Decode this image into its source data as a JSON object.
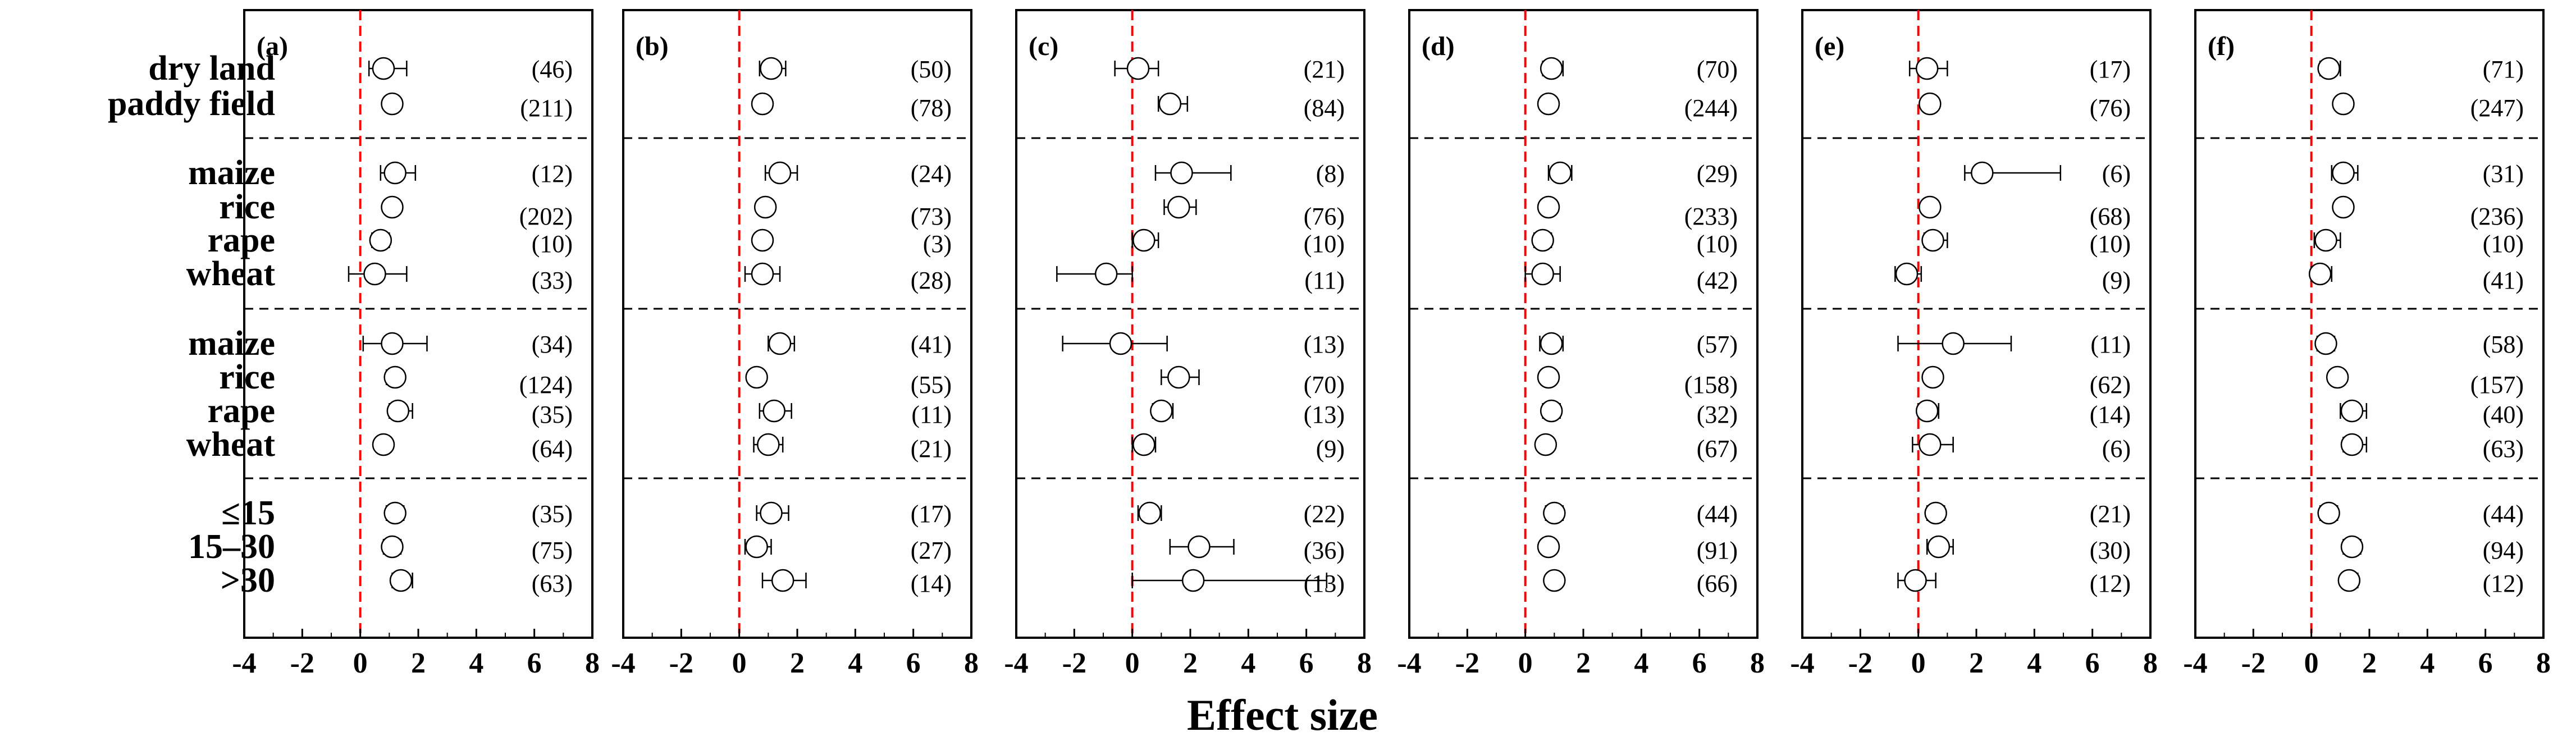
{
  "chart_data": {
    "type": "forest",
    "xlabel": "Effect size",
    "xlim": [
      -4,
      8
    ],
    "xticks": [
      -4,
      -2,
      0,
      2,
      4,
      6,
      8
    ],
    "reference_line": 0,
    "rows": [
      "dry land",
      "paddy field",
      "maize",
      "rice",
      "rape",
      "wheat",
      "maize",
      "rice",
      "rape",
      "wheat",
      "≤15",
      "15–30",
      ">30"
    ],
    "groups": [
      {
        "rows": [
          0,
          1
        ]
      },
      {
        "rows": [
          2,
          3,
          4,
          5
        ]
      },
      {
        "rows": [
          6,
          7,
          8,
          9
        ]
      },
      {
        "rows": [
          10,
          11,
          12
        ]
      }
    ],
    "panels": [
      {
        "label": "(a)",
        "points": [
          {
            "mean": 0.8,
            "lo": 0.3,
            "hi": 1.6,
            "n": "(46)"
          },
          {
            "mean": 1.1,
            "lo": 0.9,
            "hi": 1.3,
            "n": "(211)"
          },
          {
            "mean": 1.2,
            "lo": 0.7,
            "hi": 1.9,
            "n": "(12)"
          },
          {
            "mean": 1.1,
            "lo": 0.9,
            "hi": 1.3,
            "n": "(202)"
          },
          {
            "mean": 0.7,
            "lo": 0.4,
            "hi": 1.0,
            "n": "(10)"
          },
          {
            "mean": 0.5,
            "lo": -0.4,
            "hi": 1.6,
            "n": "(33)"
          },
          {
            "mean": 1.1,
            "lo": 0.1,
            "hi": 2.3,
            "n": "(34)"
          },
          {
            "mean": 1.2,
            "lo": 0.9,
            "hi": 1.4,
            "n": "(124)"
          },
          {
            "mean": 1.3,
            "lo": 1.0,
            "hi": 1.8,
            "n": "(35)"
          },
          {
            "mean": 0.8,
            "lo": 0.6,
            "hi": 1.0,
            "n": "(64)"
          },
          {
            "mean": 1.2,
            "lo": 0.9,
            "hi": 1.5,
            "n": "(35)"
          },
          {
            "mean": 1.1,
            "lo": 0.8,
            "hi": 1.4,
            "n": "(75)"
          },
          {
            "mean": 1.4,
            "lo": 1.1,
            "hi": 1.8,
            "n": "(63)"
          }
        ]
      },
      {
        "label": "(b)",
        "points": [
          {
            "mean": 1.1,
            "lo": 0.7,
            "hi": 1.6,
            "n": "(50)"
          },
          {
            "mean": 0.8,
            "lo": 0.6,
            "hi": 1.0,
            "n": "(78)"
          },
          {
            "mean": 1.4,
            "lo": 0.9,
            "hi": 2.0,
            "n": "(24)"
          },
          {
            "mean": 0.9,
            "lo": 0.7,
            "hi": 1.1,
            "n": "(73)"
          },
          {
            "mean": 0.8,
            "lo": 0.6,
            "hi": 1.0,
            "n": "(3)"
          },
          {
            "mean": 0.8,
            "lo": 0.2,
            "hi": 1.4,
            "n": "(28)"
          },
          {
            "mean": 1.4,
            "lo": 1.0,
            "hi": 1.9,
            "n": "(41)"
          },
          {
            "mean": 0.6,
            "lo": 0.4,
            "hi": 0.8,
            "n": "(55)"
          },
          {
            "mean": 1.2,
            "lo": 0.7,
            "hi": 1.8,
            "n": "(11)"
          },
          {
            "mean": 1.0,
            "lo": 0.5,
            "hi": 1.5,
            "n": "(21)"
          },
          {
            "mean": 1.1,
            "lo": 0.6,
            "hi": 1.7,
            "n": "(17)"
          },
          {
            "mean": 0.6,
            "lo": 0.2,
            "hi": 1.1,
            "n": "(27)"
          },
          {
            "mean": 1.5,
            "lo": 0.8,
            "hi": 2.3,
            "n": "(14)"
          }
        ]
      },
      {
        "label": "(c)",
        "points": [
          {
            "mean": 0.2,
            "lo": -0.6,
            "hi": 0.9,
            "n": "(21)"
          },
          {
            "mean": 1.3,
            "lo": 0.9,
            "hi": 1.9,
            "n": "(84)"
          },
          {
            "mean": 1.7,
            "lo": 0.8,
            "hi": 3.4,
            "n": "(8)"
          },
          {
            "mean": 1.6,
            "lo": 1.1,
            "hi": 2.2,
            "n": "(76)"
          },
          {
            "mean": 0.4,
            "lo": 0.0,
            "hi": 0.9,
            "n": "(10)"
          },
          {
            "mean": -0.9,
            "lo": -2.6,
            "hi": 0.0,
            "n": "(11)"
          },
          {
            "mean": -0.4,
            "lo": -2.4,
            "hi": 1.2,
            "n": "(13)"
          },
          {
            "mean": 1.6,
            "lo": 1.0,
            "hi": 2.3,
            "n": "(70)"
          },
          {
            "mean": 1.0,
            "lo": 0.7,
            "hi": 1.4,
            "n": "(13)"
          },
          {
            "mean": 0.4,
            "lo": 0.0,
            "hi": 0.8,
            "n": "(9)"
          },
          {
            "mean": 0.6,
            "lo": 0.2,
            "hi": 1.0,
            "n": "(22)"
          },
          {
            "mean": 2.3,
            "lo": 1.3,
            "hi": 3.5,
            "n": "(36)"
          },
          {
            "mean": 2.1,
            "lo": 0.0,
            "hi": 6.7,
            "n": "(13)"
          }
        ]
      },
      {
        "label": "(d)",
        "points": [
          {
            "mean": 0.9,
            "lo": 0.6,
            "hi": 1.3,
            "n": "(70)"
          },
          {
            "mean": 0.8,
            "lo": 0.7,
            "hi": 0.9,
            "n": "(244)"
          },
          {
            "mean": 1.2,
            "lo": 0.8,
            "hi": 1.6,
            "n": "(29)"
          },
          {
            "mean": 0.8,
            "lo": 0.7,
            "hi": 0.9,
            "n": "(233)"
          },
          {
            "mean": 0.6,
            "lo": 0.3,
            "hi": 0.9,
            "n": "(10)"
          },
          {
            "mean": 0.6,
            "lo": 0.0,
            "hi": 1.2,
            "n": "(42)"
          },
          {
            "mean": 0.9,
            "lo": 0.5,
            "hi": 1.3,
            "n": "(57)"
          },
          {
            "mean": 0.8,
            "lo": 0.6,
            "hi": 1.0,
            "n": "(158)"
          },
          {
            "mean": 0.9,
            "lo": 0.6,
            "hi": 1.2,
            "n": "(32)"
          },
          {
            "mean": 0.7,
            "lo": 0.5,
            "hi": 0.9,
            "n": "(67)"
          },
          {
            "mean": 1.0,
            "lo": 0.7,
            "hi": 1.3,
            "n": "(44)"
          },
          {
            "mean": 0.8,
            "lo": 0.6,
            "hi": 1.0,
            "n": "(91)"
          },
          {
            "mean": 1.0,
            "lo": 0.8,
            "hi": 1.2,
            "n": "(66)"
          }
        ]
      },
      {
        "label": "(e)",
        "points": [
          {
            "mean": 0.3,
            "lo": -0.3,
            "hi": 1.0,
            "n": "(17)"
          },
          {
            "mean": 0.4,
            "lo": 0.2,
            "hi": 0.6,
            "n": "(76)"
          },
          {
            "mean": 2.2,
            "lo": 1.6,
            "hi": 4.9,
            "n": "(6)"
          },
          {
            "mean": 0.4,
            "lo": 0.2,
            "hi": 0.6,
            "n": "(68)"
          },
          {
            "mean": 0.5,
            "lo": 0.2,
            "hi": 1.0,
            "n": "(10)"
          },
          {
            "mean": -0.4,
            "lo": -0.8,
            "hi": 0.1,
            "n": "(9)"
          },
          {
            "mean": 1.2,
            "lo": -0.7,
            "hi": 3.2,
            "n": "(11)"
          },
          {
            "mean": 0.5,
            "lo": 0.3,
            "hi": 0.7,
            "n": "(62)"
          },
          {
            "mean": 0.3,
            "lo": 0.0,
            "hi": 0.7,
            "n": "(14)"
          },
          {
            "mean": 0.4,
            "lo": -0.2,
            "hi": 1.2,
            "n": "(6)"
          },
          {
            "mean": 0.6,
            "lo": 0.3,
            "hi": 0.9,
            "n": "(21)"
          },
          {
            "mean": 0.7,
            "lo": 0.3,
            "hi": 1.2,
            "n": "(30)"
          },
          {
            "mean": -0.1,
            "lo": -0.7,
            "hi": 0.6,
            "n": "(12)"
          }
        ]
      },
      {
        "label": "(f)",
        "points": [
          {
            "mean": 0.6,
            "lo": 0.3,
            "hi": 1.0,
            "n": "(71)"
          },
          {
            "mean": 1.1,
            "lo": 0.9,
            "hi": 1.3,
            "n": "(247)"
          },
          {
            "mean": 1.1,
            "lo": 0.7,
            "hi": 1.6,
            "n": "(31)"
          },
          {
            "mean": 1.1,
            "lo": 0.9,
            "hi": 1.3,
            "n": "(236)"
          },
          {
            "mean": 0.5,
            "lo": 0.1,
            "hi": 1.0,
            "n": "(10)"
          },
          {
            "mean": 0.3,
            "lo": 0.0,
            "hi": 0.7,
            "n": "(41)"
          },
          {
            "mean": 0.5,
            "lo": 0.2,
            "hi": 0.8,
            "n": "(58)"
          },
          {
            "mean": 0.9,
            "lo": 0.7,
            "hi": 1.1,
            "n": "(157)"
          },
          {
            "mean": 1.4,
            "lo": 1.0,
            "hi": 1.9,
            "n": "(40)"
          },
          {
            "mean": 1.4,
            "lo": 1.1,
            "hi": 1.9,
            "n": "(63)"
          },
          {
            "mean": 0.6,
            "lo": 0.3,
            "hi": 0.9,
            "n": "(44)"
          },
          {
            "mean": 1.4,
            "lo": 1.1,
            "hi": 1.7,
            "n": "(94)"
          },
          {
            "mean": 1.3,
            "lo": 1.1,
            "hi": 1.6,
            "n": "(12)"
          }
        ]
      }
    ]
  }
}
